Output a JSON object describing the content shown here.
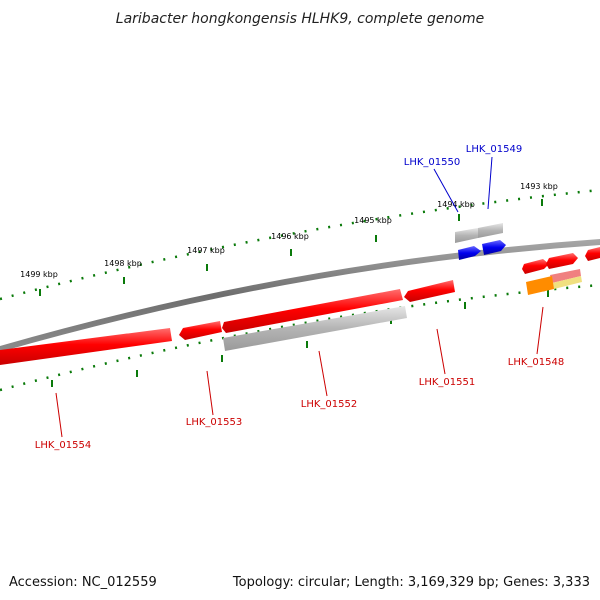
{
  "title": "Laribacter hongkongensis HLHK9, complete genome",
  "footer": {
    "accession": "Accession: NC_012559",
    "summary": "Topology: circular; Length: 3,169,329 bp; Genes: 3,333"
  },
  "colors": {
    "backbone": "#808080",
    "forward_gene": "#ff0000",
    "reverse_gene": "#0000ee",
    "pseudo_gene": "#b4b4b4",
    "orange_feature": "#ff8c00",
    "tick": "#0a7a0a",
    "label_forward": "#cc0000",
    "label_reverse": "#0000cc"
  },
  "ticks": [
    {
      "label": "1493 kbp"
    },
    {
      "label": "1494 kbp"
    },
    {
      "label": "1495 kbp"
    },
    {
      "label": "1496 kbp"
    },
    {
      "label": "1497 kbp"
    },
    {
      "label": "1498 kbp"
    },
    {
      "label": "1499 kbp"
    }
  ],
  "genes": [
    {
      "id": "LHK_01549",
      "label": "LHK_01549",
      "strand": "reverse"
    },
    {
      "id": "LHK_01550",
      "label": "LHK_01550",
      "strand": "reverse"
    },
    {
      "id": "LHK_01548",
      "label": "LHK_01548",
      "strand": "forward"
    },
    {
      "id": "LHK_01551",
      "label": "LHK_01551",
      "strand": "forward"
    },
    {
      "id": "LHK_01552",
      "label": "LHK_01552",
      "strand": "forward"
    },
    {
      "id": "LHK_01553",
      "label": "LHK_01553",
      "strand": "forward"
    },
    {
      "id": "LHK_01554",
      "label": "LHK_01554",
      "strand": "forward"
    }
  ]
}
